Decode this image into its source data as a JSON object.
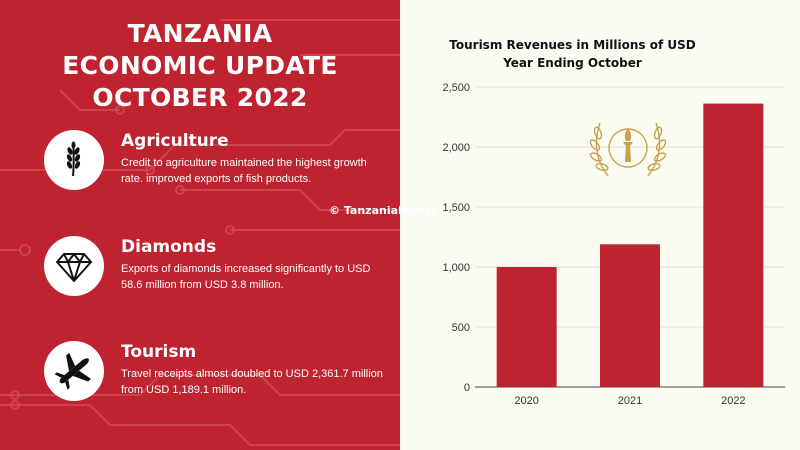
{
  "title_lines": [
    "TANZANIA",
    "ECONOMIC UPDATE",
    "OCTOBER 2022"
  ],
  "sections": [
    {
      "title": "Agriculture",
      "body": "Credit to agriculture maintained the highest growth rate. improved exports of fish products.",
      "icon": "wheat-icon"
    },
    {
      "title": "Diamonds",
      "body": "Exports of diamonds increased significantly to USD 58.6 million from USD 3.8 million.",
      "icon": "diamond-icon"
    },
    {
      "title": "Tourism",
      "body": "Travel receipts almost doubled to USD 2,361.7 million from USD 1,189.1 million.",
      "icon": "airplane-icon"
    }
  ],
  "watermark": "© TanzaniaInvest",
  "colors": {
    "primary": "#bf2330",
    "background": "#fbfbf1",
    "bar": "#bf2330"
  },
  "chart_data": {
    "type": "bar",
    "title": "Tourism Revenues in Millions of USD",
    "subtitle": "Year Ending October",
    "categories": [
      "2020",
      "2021",
      "2022"
    ],
    "values": [
      1000,
      1189.1,
      2361.7
    ],
    "ylim": [
      0,
      2500
    ],
    "yticks": [
      0,
      500,
      1000,
      1500,
      2000,
      2500
    ],
    "ytick_labels": [
      "0",
      "500",
      "1,000",
      "1,500",
      "2,000",
      "2,500"
    ],
    "xlabel": "",
    "ylabel": "",
    "grid": true
  }
}
